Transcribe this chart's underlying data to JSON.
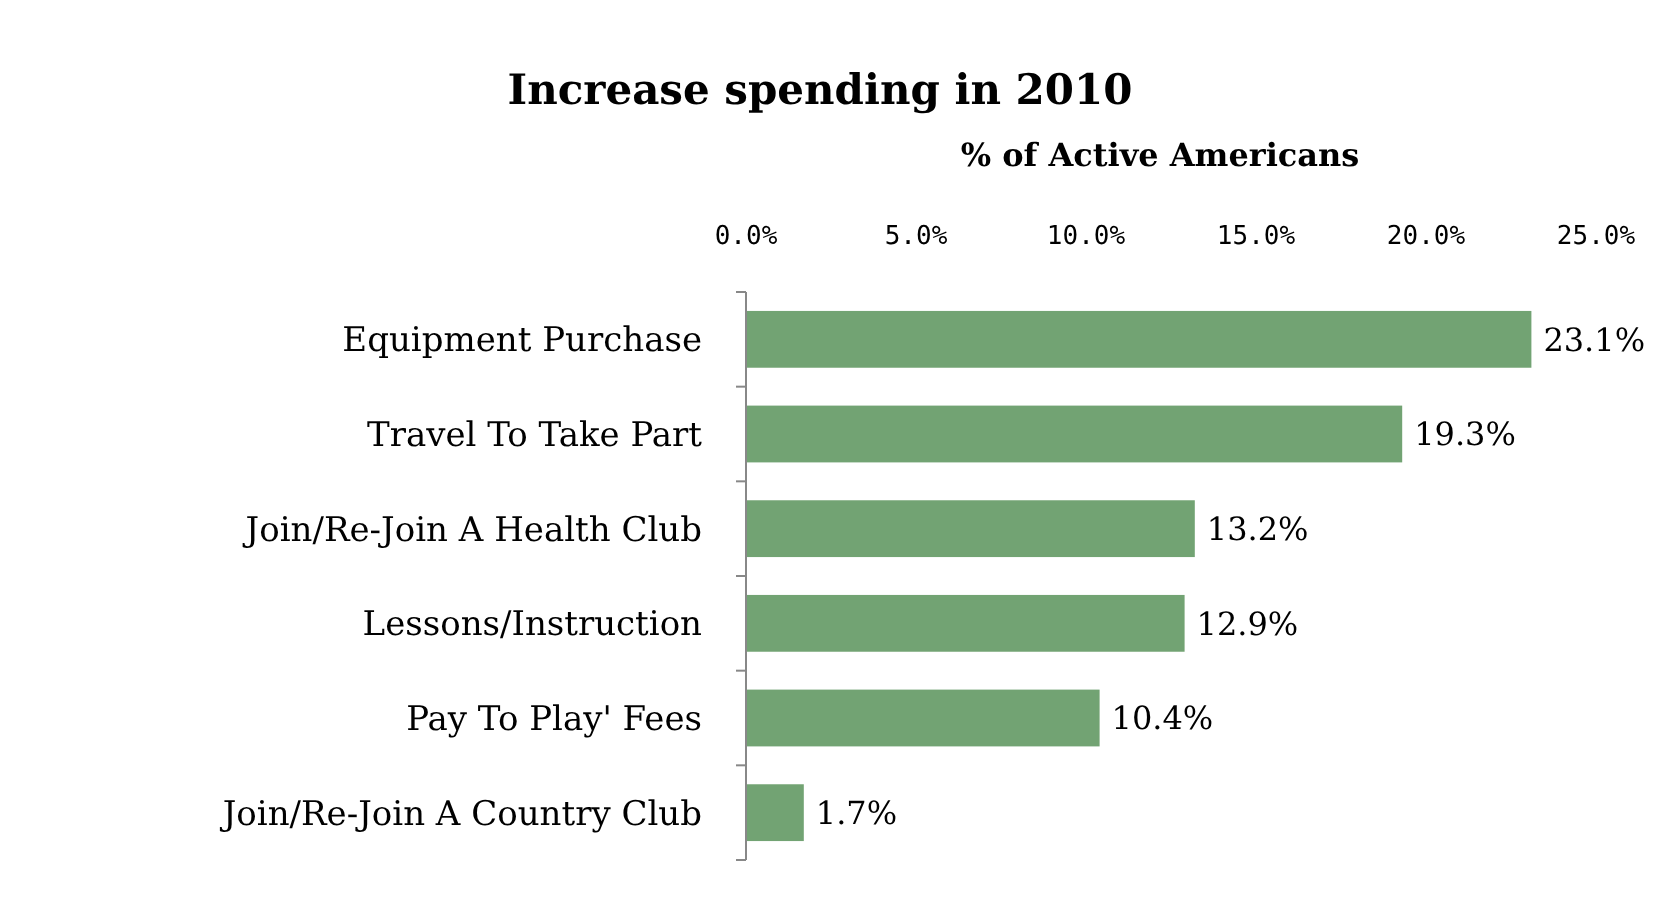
{
  "chart_data": {
    "type": "bar",
    "orientation": "horizontal",
    "title": "Increase spending in 2010",
    "xlabel": "% of Active Americans",
    "categories": [
      "Equipment Purchase",
      "Travel To Take Part",
      "Join/Re-Join A Health Club",
      "Lessons/Instruction",
      "Pay To Play' Fees",
      "Join/Re-Join A Country Club"
    ],
    "values": [
      23.1,
      19.3,
      13.2,
      12.9,
      10.4,
      1.7
    ],
    "value_labels": [
      "23.1%",
      "19.3%",
      "13.2%",
      "12.9%",
      "10.4%",
      "1.7%"
    ],
    "color": "#72a373",
    "xlim": [
      0,
      25
    ],
    "xticks": [
      {
        "value": 0,
        "label": "0.0%"
      },
      {
        "value": 5,
        "label": "5.0%"
      },
      {
        "value": 10,
        "label": "10.0%"
      },
      {
        "value": 15,
        "label": "15.0%"
      },
      {
        "value": 20,
        "label": "20.0%"
      },
      {
        "value": 25,
        "label": "25.0%"
      }
    ],
    "grid": false
  }
}
